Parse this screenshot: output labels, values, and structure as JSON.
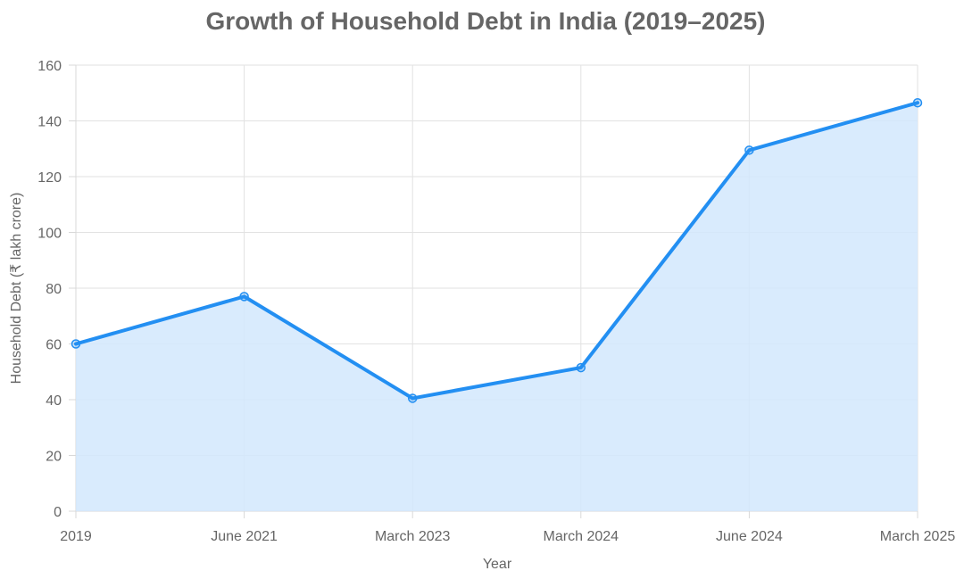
{
  "chart_data": {
    "type": "area",
    "title": "Growth of Household Debt in India (2019–2025)",
    "xlabel": "Year",
    "ylabel": "Household Debt (₹ lakh crore)",
    "categories": [
      "2019",
      "June 2021",
      "March 2023",
      "March 2024",
      "June 2024",
      "March 2025"
    ],
    "series": [
      {
        "values": [
          60,
          77,
          40.5,
          51.5,
          129.5,
          146.5
        ]
      }
    ],
    "ylim": [
      0,
      160
    ],
    "yticks": [
      0,
      20,
      40,
      60,
      80,
      100,
      120,
      140,
      160
    ],
    "grid": true,
    "legend": "none",
    "colors": {
      "line": "#238ff2",
      "fill": "#d2e8fd",
      "grid": "#e2e2e2",
      "text": "#666666"
    }
  }
}
